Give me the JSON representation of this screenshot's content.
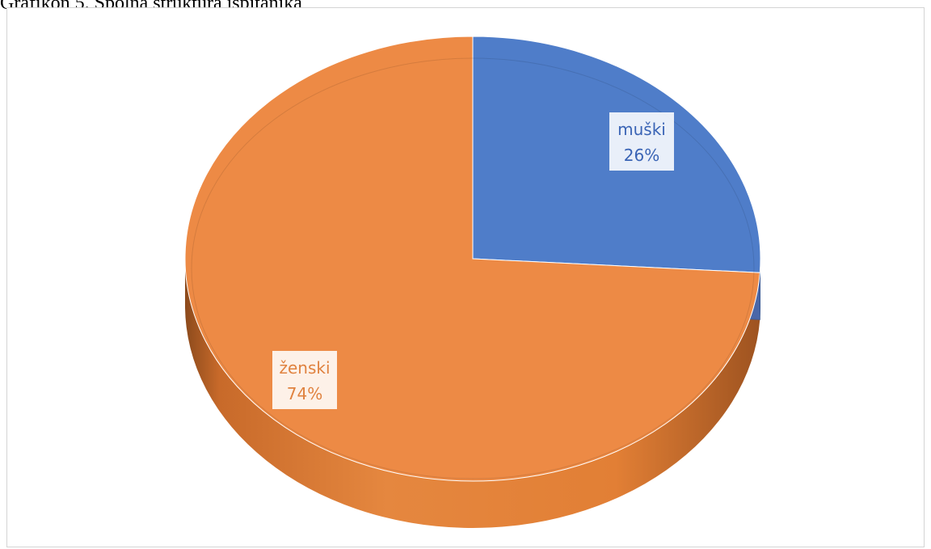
{
  "caption": "Grafikon 5. Spolna struktura ispitanika",
  "chart_data": {
    "type": "pie",
    "style": "3d",
    "series": [
      {
        "name": "muški",
        "value": 26,
        "label": "26%",
        "color": "#4f7dc9"
      },
      {
        "name": "ženski",
        "value": 74,
        "label": "74%",
        "color": "#ed8a45"
      }
    ],
    "legend": "none",
    "data_labels": "category and percentage"
  }
}
